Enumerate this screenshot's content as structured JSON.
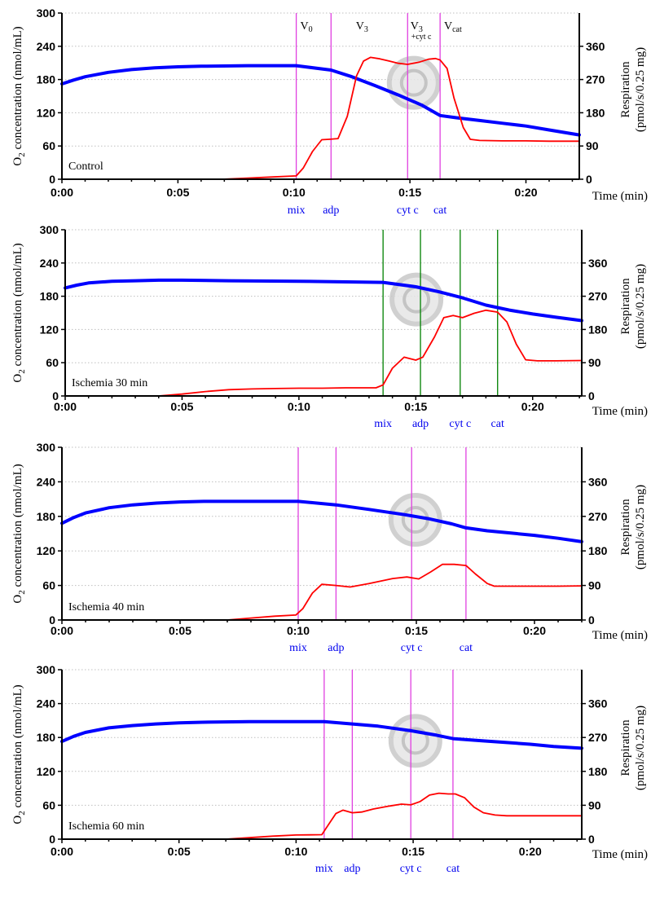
{
  "chart_data": [
    {
      "type": "line",
      "panel_label": "Control",
      "xlabel": "Time (min)",
      "ylabel_left": [
        "O",
        "2",
        " concentration (nmol/mL)"
      ],
      "ylabel_right": [
        "Respiration",
        "(pmol/s/0.25 mg)"
      ],
      "xlim": [
        0,
        22.3
      ],
      "ylim_left": [
        0,
        300
      ],
      "ylim_right": [
        0,
        450
      ],
      "x_ticks": [
        0,
        5,
        10,
        15,
        20
      ],
      "x_tick_labels": [
        "0:00",
        "0:05",
        "0:10",
        "0:15",
        "0:20"
      ],
      "y_left_ticks": [
        0,
        60,
        120,
        180,
        240,
        300
      ],
      "y_left_tick_labels": [
        "0",
        "60",
        "120",
        "180",
        "240",
        "300"
      ],
      "y_right_ticks": [
        0,
        90,
        180,
        270,
        360
      ],
      "y_right_tick_labels": [
        "0",
        "90",
        "180",
        "270",
        "360"
      ],
      "marker_color": "#e040e0",
      "markers": [
        {
          "x": 10.1,
          "label": "mix"
        },
        {
          "x": 11.6,
          "label": "adp"
        },
        {
          "x": 14.9,
          "label": "cyt c"
        },
        {
          "x": 16.3,
          "label": "cat"
        }
      ],
      "state_labels": [
        {
          "x": 10.2,
          "main": "V",
          "sub": "0"
        },
        {
          "x": 12.6,
          "main": "V",
          "sub": "3"
        },
        {
          "x": 14.95,
          "main": "V",
          "sub": "3",
          "sub2": "+cyt c"
        },
        {
          "x": 16.4,
          "main": "V",
          "sub": "cat"
        }
      ],
      "series": [
        {
          "name": "O2 concentration",
          "axis": "left",
          "color": "#0000ff",
          "x": [
            0,
            0.5,
            1,
            2,
            3,
            4,
            5,
            6,
            8,
            10.1,
            11.6,
            12.5,
            13.5,
            14.5,
            15.5,
            16.3,
            17,
            18,
            19,
            20,
            21,
            22.3
          ],
          "y": [
            172,
            179,
            185,
            193,
            198,
            201,
            203,
            204,
            205,
            205,
            197,
            185,
            169,
            152,
            134,
            115,
            111,
            106,
            101,
            96,
            89,
            80
          ]
        },
        {
          "name": "Respiration",
          "axis": "right",
          "color": "#ff0000",
          "x": [
            6.9,
            8,
            9,
            10.1,
            10.4,
            10.8,
            11.2,
            11.5,
            11.9,
            12.3,
            12.7,
            13,
            13.3,
            13.7,
            14.1,
            14.5,
            14.9,
            15.4,
            15.8,
            16.1,
            16.3,
            16.6,
            16.9,
            17.3,
            17.6,
            18,
            19,
            20,
            21,
            22.3
          ],
          "y": [
            0,
            3,
            6,
            9,
            30,
            75,
            107,
            108,
            110,
            170,
            280,
            320,
            330,
            326,
            320,
            314,
            311,
            317,
            325,
            327,
            323,
            300,
            220,
            140,
            108,
            105,
            104,
            104,
            103,
            103
          ]
        }
      ]
    },
    {
      "type": "line",
      "panel_label": "Ischemia 30 min",
      "xlabel": "Time (min)",
      "ylabel_left": [
        "O",
        "2",
        " concentration (nmol/mL)"
      ],
      "ylabel_right": [
        "Respiration",
        "(pmol/s/0.25 mg)"
      ],
      "xlim": [
        0,
        22.1
      ],
      "ylim_left": [
        0,
        300
      ],
      "ylim_right": [
        0,
        450
      ],
      "x_ticks": [
        0,
        5,
        10,
        15,
        20
      ],
      "x_tick_labels": [
        "0:00",
        "0:05",
        "0:10",
        "0:15",
        "0:20"
      ],
      "y_left_ticks": [
        0,
        60,
        120,
        180,
        240,
        300
      ],
      "y_left_tick_labels": [
        "0",
        "60",
        "120",
        "180",
        "240",
        "300"
      ],
      "y_right_ticks": [
        0,
        90,
        180,
        270,
        360
      ],
      "y_right_tick_labels": [
        "0",
        "90",
        "180",
        "270",
        "360"
      ],
      "marker_color": "#008000",
      "markers": [
        {
          "x": 13.6,
          "label": "mix"
        },
        {
          "x": 15.2,
          "label": "adp"
        },
        {
          "x": 16.9,
          "label": "cyt c"
        },
        {
          "x": 18.5,
          "label": "cat"
        }
      ],
      "state_labels": [],
      "series": [
        {
          "name": "O2 concentration",
          "axis": "left",
          "color": "#0000ff",
          "x": [
            0,
            0.5,
            1,
            2,
            3,
            4,
            5,
            7,
            10,
            13.6,
            15,
            16,
            17,
            18,
            19,
            20,
            21,
            22.1
          ],
          "y": [
            195,
            200,
            204,
            207,
            208,
            209,
            209,
            208,
            207,
            205,
            197,
            188,
            177,
            164,
            155,
            148,
            142,
            136
          ]
        },
        {
          "name": "Respiration",
          "axis": "right",
          "color": "#ff0000",
          "x": [
            4,
            5,
            6,
            7,
            8,
            9,
            10,
            11,
            12,
            13.3,
            13.6,
            14,
            14.5,
            15,
            15.3,
            15.8,
            16.2,
            16.6,
            17,
            17.5,
            18,
            18.5,
            18.9,
            19.3,
            19.7,
            20.2,
            21,
            22.1
          ],
          "y": [
            0,
            5,
            12,
            17,
            19,
            20,
            21,
            21,
            22,
            22,
            30,
            75,
            105,
            97,
            105,
            160,
            212,
            218,
            212,
            224,
            232,
            227,
            200,
            140,
            98,
            95,
            95,
            96
          ]
        }
      ]
    },
    {
      "type": "line",
      "panel_label": "Ischemia 40 min",
      "xlabel": "Time (min)",
      "ylabel_left": [
        "O",
        "2",
        " concentration (nmol/mL)"
      ],
      "ylabel_right": [
        "Respiration",
        "(pmol/s/0.25 mg)"
      ],
      "xlim": [
        0,
        22
      ],
      "ylim_left": [
        0,
        300
      ],
      "ylim_right": [
        0,
        450
      ],
      "x_ticks": [
        0,
        5,
        10,
        15,
        20
      ],
      "x_tick_labels": [
        "0:00",
        "0:05",
        "0:10",
        "0:15",
        "0:20"
      ],
      "y_left_ticks": [
        0,
        60,
        120,
        180,
        240,
        300
      ],
      "y_left_tick_labels": [
        "0",
        "60",
        "120",
        "180",
        "240",
        "300"
      ],
      "y_right_ticks": [
        0,
        90,
        180,
        270,
        360
      ],
      "y_right_tick_labels": [
        "0",
        "90",
        "180",
        "270",
        "360"
      ],
      "marker_color": "#e040e0",
      "markers": [
        {
          "x": 10.0,
          "label": "mix"
        },
        {
          "x": 11.6,
          "label": "adp"
        },
        {
          "x": 14.8,
          "label": "cyt c"
        },
        {
          "x": 17.1,
          "label": "cat"
        }
      ],
      "state_labels": [],
      "series": [
        {
          "name": "O2 concentration",
          "axis": "left",
          "color": "#0000ff",
          "x": [
            0,
            0.5,
            1,
            2,
            3,
            4,
            5,
            6,
            8,
            10,
            11.6,
            13,
            14.5,
            15.5,
            16.5,
            17.1,
            18,
            19,
            20,
            21,
            22
          ],
          "y": [
            168,
            178,
            186,
            195,
            200,
            203,
            205,
            206,
            206,
            206,
            200,
            192,
            183,
            176,
            167,
            160,
            155,
            151,
            147,
            142,
            136
          ]
        },
        {
          "name": "Respiration",
          "axis": "right",
          "color": "#ff0000",
          "x": [
            7,
            8,
            9,
            9.9,
            10.2,
            10.6,
            11,
            11.6,
            12.2,
            13,
            14,
            14.6,
            15.1,
            15.6,
            16.1,
            16.6,
            17.1,
            17.5,
            18,
            18.3,
            19,
            20,
            21,
            22
          ],
          "y": [
            0,
            5,
            10,
            13,
            30,
            70,
            93,
            90,
            86,
            95,
            108,
            112,
            107,
            125,
            145,
            145,
            142,
            120,
            95,
            88,
            88,
            88,
            88,
            89
          ]
        }
      ]
    },
    {
      "type": "line",
      "panel_label": "Ischemia 60 min",
      "xlabel": "Time (min)",
      "ylabel_left": [
        "O",
        "2",
        " concentration (nmol/mL)"
      ],
      "ylabel_right": [
        "Respiration",
        "(pmol/s/0.25 mg)"
      ],
      "xlim": [
        0,
        22.2
      ],
      "ylim_left": [
        0,
        300
      ],
      "ylim_right": [
        0,
        450
      ],
      "x_ticks": [
        0,
        5,
        10,
        15,
        20
      ],
      "x_tick_labels": [
        "0:00",
        "0:05",
        "0:10",
        "0:15",
        "0:20"
      ],
      "y_left_ticks": [
        0,
        60,
        120,
        180,
        240,
        300
      ],
      "y_left_tick_labels": [
        "0",
        "60",
        "120",
        "180",
        "240",
        "300"
      ],
      "y_right_ticks": [
        0,
        90,
        180,
        270,
        360
      ],
      "y_right_tick_labels": [
        "0",
        "90",
        "180",
        "270",
        "360"
      ],
      "marker_color": "#e040e0",
      "markers": [
        {
          "x": 11.2,
          "label": "mix"
        },
        {
          "x": 12.4,
          "label": "adp"
        },
        {
          "x": 14.9,
          "label": "cyt c"
        },
        {
          "x": 16.7,
          "label": "cat"
        }
      ],
      "state_labels": [],
      "series": [
        {
          "name": "O2 concentration",
          "axis": "left",
          "color": "#0000ff",
          "x": [
            0,
            0.5,
            1,
            2,
            3,
            4,
            5,
            6,
            8,
            11.2,
            12.4,
            13.5,
            14.9,
            16,
            16.7,
            18,
            19,
            20,
            21,
            22.2
          ],
          "y": [
            173,
            182,
            189,
            197,
            201,
            204,
            206,
            207,
            208,
            208,
            204,
            200,
            192,
            184,
            178,
            174,
            171,
            168,
            164,
            161
          ]
        },
        {
          "name": "Respiration",
          "axis": "right",
          "color": "#ff0000",
          "x": [
            7,
            8,
            9,
            10,
            11.1,
            11.4,
            11.7,
            12,
            12.4,
            12.8,
            13.3,
            14,
            14.5,
            14.9,
            15.3,
            15.7,
            16.1,
            16.5,
            16.8,
            17.2,
            17.6,
            18,
            18.5,
            19,
            20,
            21,
            22.2
          ],
          "y": [
            0,
            4,
            8,
            11,
            12,
            40,
            68,
            77,
            70,
            72,
            80,
            88,
            93,
            91,
            100,
            117,
            122,
            120,
            120,
            110,
            85,
            70,
            64,
            62,
            62,
            62,
            62
          ]
        }
      ]
    }
  ]
}
